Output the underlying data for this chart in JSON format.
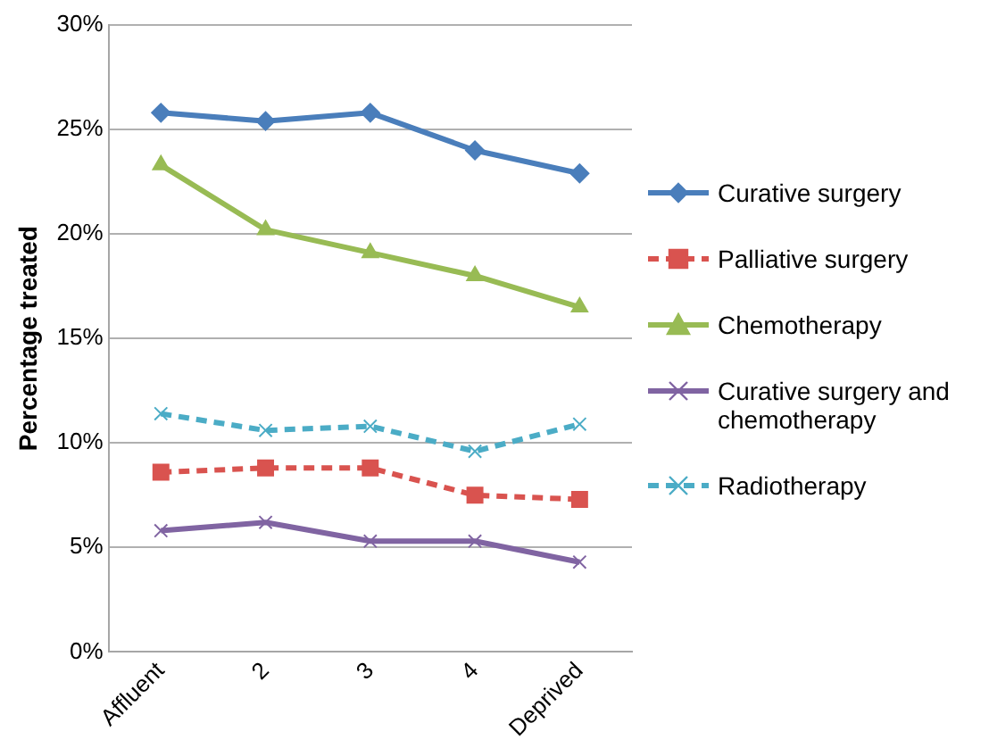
{
  "chart_data": {
    "type": "line",
    "ylabel": "Percentage treated",
    "categories": [
      "Affluent",
      "2",
      "3",
      "4",
      "Deprived"
    ],
    "ylim": [
      0,
      30
    ],
    "yticks": [
      {
        "value": 0,
        "label": "0%"
      },
      {
        "value": 5,
        "label": "5%"
      },
      {
        "value": 10,
        "label": "10%"
      },
      {
        "value": 15,
        "label": "15%"
      },
      {
        "value": 20,
        "label": "20%"
      },
      {
        "value": 25,
        "label": "25%"
      },
      {
        "value": 30,
        "label": "30%"
      }
    ],
    "grid": "y",
    "legend": "right",
    "series": [
      {
        "name": "Curative surgery",
        "color": "#4a7ebb",
        "marker": "diamond",
        "line_style": "solid",
        "values": [
          25.8,
          25.4,
          25.8,
          24.0,
          22.9
        ]
      },
      {
        "name": "Palliative surgery",
        "color": "#d9534f",
        "marker": "square",
        "line_style": "dashed",
        "values": [
          8.6,
          8.8,
          8.8,
          7.5,
          7.3
        ]
      },
      {
        "name": "Chemotherapy",
        "color": "#98bb54",
        "marker": "triangle",
        "line_style": "solid",
        "values": [
          23.3,
          20.2,
          19.1,
          18.0,
          16.5
        ]
      },
      {
        "name": "Curative surgery and chemotherapy",
        "color": "#8064a2",
        "marker": "cross",
        "line_style": "solid",
        "values": [
          5.8,
          6.2,
          5.3,
          5.3,
          4.3
        ]
      },
      {
        "name": "Radiotherapy",
        "color": "#4bacc6",
        "marker": "cross",
        "line_style": "dashed",
        "values": [
          11.4,
          10.6,
          10.8,
          9.6,
          10.9
        ]
      }
    ]
  }
}
